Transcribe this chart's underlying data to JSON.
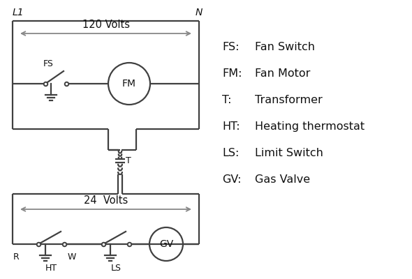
{
  "bg_color": "#ffffff",
  "line_color": "#404040",
  "arrow_color": "#888888",
  "text_color": "#111111",
  "legend_items": [
    [
      "FS:  ",
      "Fan Switch"
    ],
    [
      "FM:  ",
      "Fan Motor"
    ],
    [
      "T:    ",
      "Transformer"
    ],
    [
      "HT:  ",
      "Heating thermostat"
    ],
    [
      "LS:  ",
      "Limit Switch"
    ],
    [
      "GV:  ",
      "Gas Valve"
    ]
  ],
  "legend_fontsize": 11.5,
  "label_fontsize": 9,
  "volt_fontsize": 10.5
}
